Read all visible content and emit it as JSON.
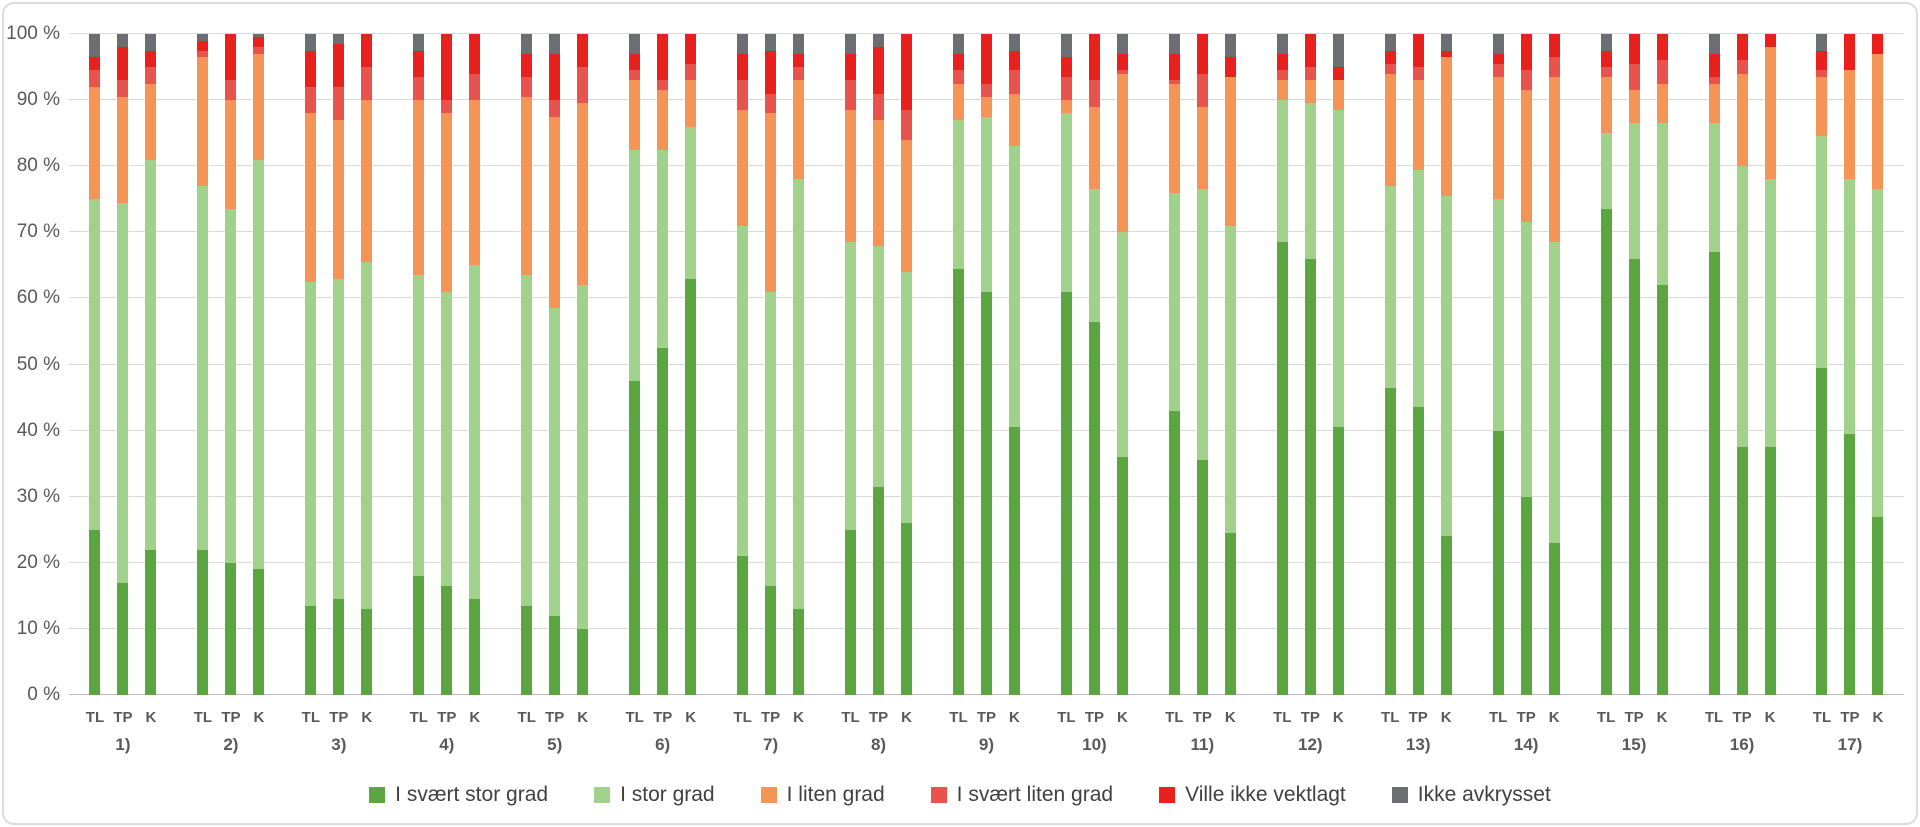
{
  "chart_data": {
    "type": "bar",
    "stacked": true,
    "units": "percent",
    "title": "",
    "xlabel": "",
    "ylabel": "",
    "ylim": [
      0,
      100
    ],
    "grid": true,
    "legend_position": "bottom",
    "y_axis_ticks": [
      "100 %",
      "90 %",
      "80 %",
      "70 %",
      "60 %",
      "50 %",
      "40 %",
      "30 %",
      "20 %",
      "10 %",
      "0 %"
    ],
    "bar_labels": [
      "TL",
      "TP",
      "K"
    ],
    "series": [
      {
        "name": "I svært stor grad",
        "color": "#5ba640"
      },
      {
        "name": "I stor grad",
        "color": "#a0d28c"
      },
      {
        "name": "I liten grad",
        "color": "#f59457"
      },
      {
        "name": "I svært liten grad",
        "color": "#e9534e"
      },
      {
        "name": "Ville ikke vektlagt",
        "color": "#e8211c"
      },
      {
        "name": "Ikke avkrysset",
        "color": "#6d6e71"
      }
    ],
    "groups": [
      {
        "label": "1)",
        "bars": [
          [
            25,
            50,
            17,
            2.5,
            2,
            3.5
          ],
          [
            17,
            57.5,
            16,
            2.5,
            5,
            2
          ],
          [
            22,
            59,
            11.5,
            2.5,
            2.5,
            2.5
          ]
        ]
      },
      {
        "label": "2)",
        "bars": [
          [
            22,
            55,
            19.5,
            1,
            1.5,
            1
          ],
          [
            20,
            53.5,
            16.5,
            3,
            7,
            0
          ],
          [
            19,
            62,
            16,
            1,
            1.5,
            0.5
          ]
        ]
      },
      {
        "label": "3)",
        "bars": [
          [
            13.5,
            49,
            25.5,
            4,
            5.5,
            2.5
          ],
          [
            14.5,
            48.5,
            24,
            5,
            6.5,
            1.5
          ],
          [
            13,
            52.5,
            24.5,
            5,
            5,
            0
          ]
        ]
      },
      {
        "label": "4)",
        "bars": [
          [
            18,
            45.5,
            26.5,
            3.5,
            4,
            2.5
          ],
          [
            16.5,
            44.5,
            27,
            2,
            10,
            0
          ],
          [
            14.5,
            50.5,
            25,
            4,
            6,
            0
          ]
        ]
      },
      {
        "label": "5)",
        "bars": [
          [
            13.5,
            50,
            27,
            3,
            3.5,
            3
          ],
          [
            12,
            46.5,
            29,
            2.5,
            7,
            3
          ],
          [
            10,
            52,
            27.5,
            5.5,
            5,
            0
          ]
        ]
      },
      {
        "label": "6)",
        "bars": [
          [
            47.5,
            35,
            10.5,
            1.5,
            2.5,
            3
          ],
          [
            52.5,
            30,
            9,
            1.5,
            7,
            0
          ],
          [
            63,
            23,
            7,
            2.5,
            4.5,
            0
          ]
        ]
      },
      {
        "label": "7)",
        "bars": [
          [
            21,
            50,
            17.5,
            4.5,
            4,
            3
          ],
          [
            16.5,
            44.5,
            27,
            3,
            6.5,
            2.5
          ],
          [
            13,
            65,
            15,
            2,
            2,
            3
          ]
        ]
      },
      {
        "label": "8)",
        "bars": [
          [
            25,
            43.5,
            20,
            4.5,
            4,
            3
          ],
          [
            31.5,
            36.5,
            19,
            4,
            7,
            2
          ],
          [
            26,
            38,
            20,
            4.5,
            11.5,
            0
          ]
        ]
      },
      {
        "label": "9)",
        "bars": [
          [
            64.5,
            22.5,
            5.5,
            2,
            2.5,
            3
          ],
          [
            61,
            26.5,
            3,
            2,
            7.5,
            0
          ],
          [
            40.5,
            42.5,
            8,
            3.5,
            3,
            2.5
          ]
        ]
      },
      {
        "label": "10)",
        "bars": [
          [
            61,
            27,
            2,
            3.5,
            3,
            3.5
          ],
          [
            56.5,
            20,
            12.5,
            4,
            7,
            0
          ],
          [
            36,
            34,
            24,
            0.5,
            2.5,
            3
          ]
        ]
      },
      {
        "label": "11)",
        "bars": [
          [
            43,
            33,
            16.5,
            0.5,
            4,
            3
          ],
          [
            35.5,
            41,
            12.5,
            5,
            6,
            0
          ],
          [
            24.5,
            46.5,
            22.5,
            0,
            3,
            3.5
          ]
        ]
      },
      {
        "label": "12)",
        "bars": [
          [
            68.5,
            21.5,
            3,
            1.5,
            2.5,
            3
          ],
          [
            66,
            23.5,
            3.5,
            2,
            5,
            0
          ],
          [
            40.5,
            48,
            4.5,
            0,
            2,
            5
          ]
        ]
      },
      {
        "label": "13)",
        "bars": [
          [
            46.5,
            30.5,
            17,
            1.5,
            2,
            2.5
          ],
          [
            43.5,
            36,
            13.5,
            2,
            5,
            0
          ],
          [
            24,
            51.5,
            21,
            0,
            1,
            2.5
          ]
        ]
      },
      {
        "label": "14)",
        "bars": [
          [
            40,
            35,
            18.5,
            2,
            1.5,
            3
          ],
          [
            30,
            41.5,
            20,
            3,
            5.5,
            0
          ],
          [
            23,
            45.5,
            25,
            3,
            3.5,
            0
          ]
        ]
      },
      {
        "label": "15)",
        "bars": [
          [
            73.5,
            11.5,
            8.5,
            1.5,
            2.5,
            2.5
          ],
          [
            66,
            20.5,
            5,
            4,
            4.5,
            0
          ],
          [
            62,
            24.5,
            6,
            3.5,
            4,
            0
          ]
        ]
      },
      {
        "label": "16)",
        "bars": [
          [
            67,
            19.5,
            6,
            1,
            3.5,
            3
          ],
          [
            37.5,
            42.5,
            14,
            2,
            4,
            0
          ],
          [
            37.5,
            40.5,
            20,
            0,
            2,
            0
          ]
        ]
      },
      {
        "label": "17)",
        "bars": [
          [
            49.5,
            35,
            9,
            1,
            3,
            2.5
          ],
          [
            39.5,
            38.5,
            16.5,
            0,
            5.5,
            0
          ],
          [
            27,
            49.5,
            20.5,
            0,
            3,
            0
          ]
        ]
      }
    ]
  }
}
